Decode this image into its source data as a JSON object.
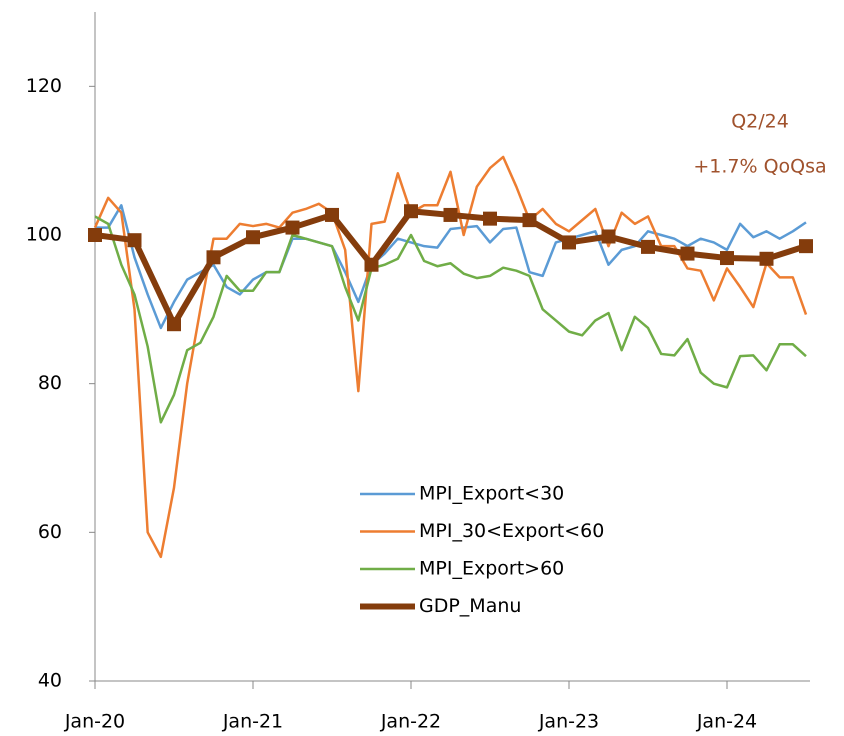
{
  "chart_data": {
    "type": "line",
    "annotations": [
      "Q2/24",
      "+1.7% QoQsa"
    ],
    "x": [
      0,
      1,
      2,
      3,
      4,
      5,
      6,
      7,
      8,
      9,
      10,
      11,
      12,
      13,
      14,
      15,
      16,
      17,
      18,
      19,
      20,
      21,
      22,
      23,
      24,
      25,
      26,
      27,
      28,
      29,
      30,
      31,
      32,
      33,
      34,
      35,
      36,
      37,
      38,
      39,
      40,
      41,
      42,
      43,
      44,
      45,
      46,
      47,
      48,
      49,
      50,
      51,
      52,
      53,
      54
    ],
    "xlim": [
      0,
      54
    ],
    "xticks": [
      {
        "value": 0,
        "label": "Jan-20"
      },
      {
        "value": 12,
        "label": "Jan-21"
      },
      {
        "value": 24,
        "label": "Jan-22"
      },
      {
        "value": 36,
        "label": "Jan-23"
      },
      {
        "value": 48,
        "label": "Jan-24"
      }
    ],
    "ylim": [
      40,
      130
    ],
    "yticks": [
      40,
      60,
      80,
      100,
      120
    ],
    "grid": false,
    "legend": "inside-bottom-center",
    "series": [
      {
        "name": "MPI_Export<30",
        "color": "#5b9bd5",
        "values": [
          101,
          101,
          104,
          97,
          92,
          87.5,
          91,
          94,
          95,
          96,
          93,
          92,
          94,
          95,
          95,
          99.5,
          99.5,
          99,
          98.5,
          95,
          91,
          96,
          97.5,
          99.5,
          99,
          98.5,
          98.3,
          100.8,
          101,
          101.2,
          99,
          100.8,
          101,
          95,
          94.5,
          99,
          99.5,
          100,
          100.5,
          96,
          98,
          98.5,
          100.5,
          100,
          99.5,
          98.5,
          99.5,
          99,
          98,
          101.5,
          99.7,
          100.5,
          99.5,
          100.5,
          101.7
        ]
      },
      {
        "name": "MPI_30<Export<60",
        "color": "#ed7d31",
        "values": [
          101,
          105,
          103,
          90,
          60,
          56.7,
          66,
          80,
          90,
          99.5,
          99.5,
          101.5,
          101.2,
          101.5,
          101,
          103,
          103.5,
          104.2,
          103,
          98,
          79,
          101.5,
          101.8,
          108.3,
          103,
          104,
          104,
          108.5,
          100,
          106.5,
          109,
          110.5,
          106.5,
          102,
          103.5,
          101.5,
          100.5,
          102,
          103.5,
          98.5,
          103,
          101.5,
          102.5,
          98.5,
          98.5,
          95.5,
          95.2,
          91.2,
          95.5,
          93,
          90.3,
          96.2,
          94.3,
          94.3,
          89.3
        ]
      },
      {
        "name": "MPI_Export>60",
        "color": "#70ad47",
        "values": [
          102.5,
          101.5,
          96,
          92,
          85,
          74.8,
          78.5,
          84.5,
          85.5,
          89,
          94.5,
          92.5,
          92.5,
          95,
          95,
          100,
          99.5,
          99,
          98.5,
          93,
          88.5,
          95.5,
          96,
          96.8,
          100,
          96.5,
          95.8,
          96.2,
          94.8,
          94.2,
          94.5,
          95.6,
          95.2,
          94.5,
          90,
          88.5,
          87,
          86.5,
          88.5,
          89.5,
          84.5,
          89,
          87.5,
          84,
          83.8,
          86,
          81.5,
          80,
          79.5,
          83.7,
          83.8,
          81.8,
          85.3,
          85.3,
          83.7
        ]
      },
      {
        "name": "GDP_Manu",
        "color": "#843c0c",
        "x": [
          0,
          3,
          6,
          9,
          12,
          15,
          18,
          21,
          24,
          27,
          30,
          33,
          36,
          39,
          42,
          45,
          48,
          51,
          54
        ],
        "values": [
          100,
          99.3,
          88,
          97,
          99.7,
          101,
          102.7,
          96,
          103.2,
          102.7,
          102.2,
          102,
          99,
          99.8,
          98.4,
          97.5,
          96.9,
          96.8,
          98.5
        ]
      }
    ]
  }
}
